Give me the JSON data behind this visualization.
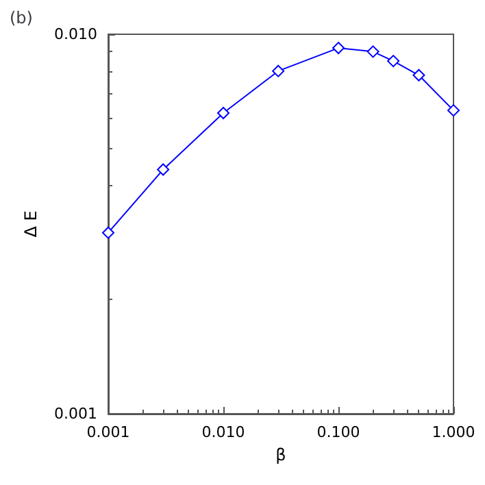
{
  "chart_data": {
    "type": "line",
    "title": "(b)",
    "xlabel": "β",
    "ylabel": "Δ E",
    "x": [
      0.001,
      0.003,
      0.01,
      0.03,
      0.1,
      0.2,
      0.3,
      0.5,
      1.0
    ],
    "series": [
      {
        "color": "#0000ff",
        "values": [
          0.003,
          0.0044,
          0.0062,
          0.008,
          0.0092,
          0.009,
          0.0085,
          0.0078,
          0.0063
        ]
      }
    ],
    "log": "xy",
    "xlim": [
      0.001,
      1.0
    ],
    "ylim": [
      0.001,
      0.01
    ],
    "xticks": [
      0.001,
      {
        "value": 0.01,
        "label": "0.010"
      },
      {
        "value": 0.1,
        "label": "0.100"
      },
      {
        "value": 1,
        "label": "1.000"
      }
    ],
    "yticks": [
      0.001,
      {
        "value": 0.01,
        "label": "0.010"
      }
    ],
    "marker": "diamond",
    "line_style": "solid",
    "grid": false
  }
}
